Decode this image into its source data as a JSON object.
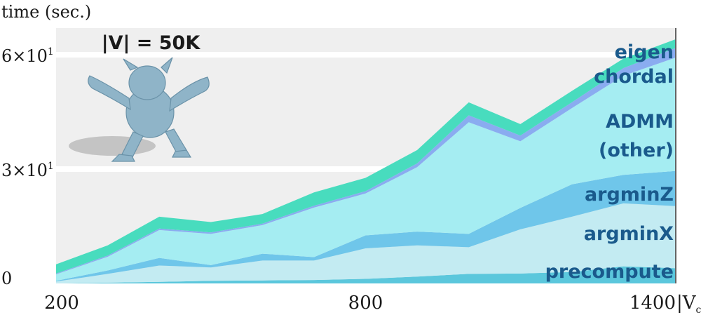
{
  "chart_data": {
    "type": "area",
    "stacked": true,
    "title": "|V| = 50K",
    "ylabel": "time (sec.)",
    "xlabel": "|V",
    "xlabel_sub": "c",
    "xlabel_end": "|",
    "xlim": [
      200,
      1400
    ],
    "ylim": [
      0,
      67
    ],
    "x": [
      200,
      300,
      400,
      500,
      600,
      700,
      800,
      900,
      1000,
      1100,
      1200,
      1300,
      1400
    ],
    "x_ticks": [
      {
        "value": 200,
        "label": "200"
      },
      {
        "value": 800,
        "label": "800"
      },
      {
        "value": 1400,
        "label": "1400"
      }
    ],
    "y_ticks": [
      {
        "value": 0,
        "label": "0"
      },
      {
        "value": 30,
        "label": "3×10"
      },
      {
        "value": 60,
        "label": "6×10"
      }
    ],
    "y_tick_exp": "1",
    "series": [
      {
        "name": "precompute",
        "color": "#5bc7dc",
        "label_color": "#1a5a8c",
        "values": [
          0.0,
          0.2,
          0.4,
          0.7,
          0.8,
          0.9,
          1.2,
          1.8,
          2.5,
          2.6,
          3.0,
          4.5,
          4.0
        ]
      },
      {
        "name": "argminX",
        "color": "#c3ebf2",
        "label_color": "#1a5a8c",
        "values": [
          0.5,
          2.3,
          4.3,
          3.5,
          5.2,
          5.1,
          8.0,
          8.2,
          7.0,
          11.6,
          14.5,
          16.5,
          16.3
        ]
      },
      {
        "name": "argminZ",
        "color": "#6fc6ea",
        "label_color": "#1a5a8c",
        "values": [
          0.2,
          0.9,
          2.0,
          0.6,
          1.8,
          0.9,
          3.4,
          3.6,
          3.5,
          5.6,
          8.5,
          7.5,
          9.2
        ]
      },
      {
        "name": "ADMM (other)",
        "label_lines": [
          "ADMM",
          "(other)"
        ],
        "color": "#a5edf2",
        "label_color": "#1a5a8c",
        "values": [
          1.7,
          3.6,
          7.3,
          8.2,
          7.5,
          13.0,
          11.0,
          16.9,
          29.3,
          17.5,
          20.0,
          26.0,
          29.7
        ]
      },
      {
        "name": "chordal",
        "color": "#8aacf0",
        "label_color": "#1a5a8c",
        "values": [
          0.2,
          0.3,
          0.4,
          0.4,
          0.4,
          0.5,
          0.6,
          1.0,
          1.8,
          1.5,
          1.5,
          2.0,
          2.5
        ]
      },
      {
        "name": "eigen",
        "color": "#48dcbe",
        "label_color": "#1a5a8c",
        "values": [
          2.4,
          2.7,
          3.1,
          2.7,
          2.5,
          3.5,
          3.5,
          3.5,
          3.4,
          3.0,
          3.0,
          2.5,
          2.3
        ]
      }
    ]
  }
}
